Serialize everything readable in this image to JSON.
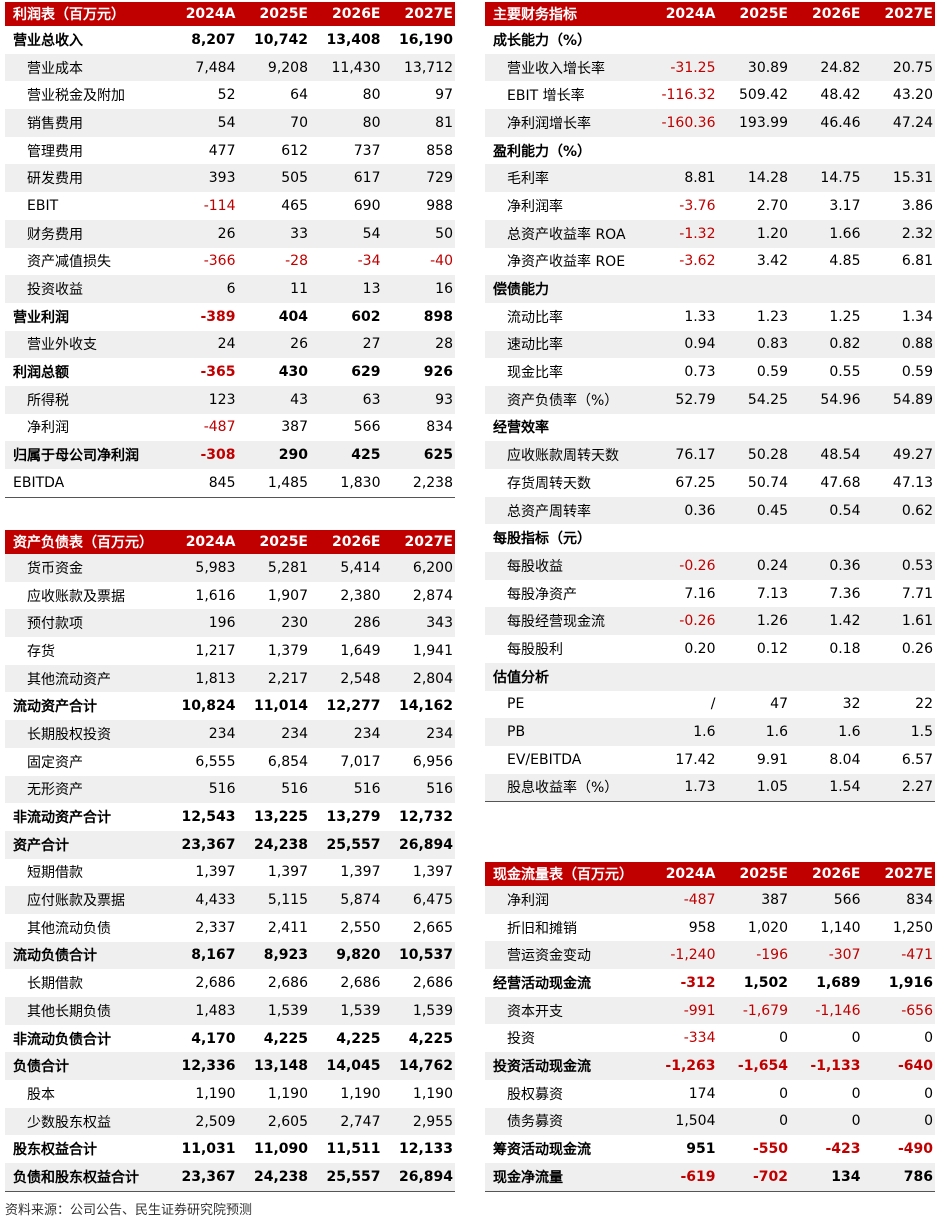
{
  "tables": [
    {
      "header": [
        "利润表（百万元）",
        "2024A",
        "2025E",
        "2026E",
        "2027E"
      ],
      "rows": [
        {
          "cells": [
            "营业总收入",
            "8,207",
            "10,742",
            "13,408",
            "16,190"
          ],
          "bold": true
        },
        {
          "cells": [
            "营业成本",
            "7,484",
            "9,208",
            "11,430",
            "13,712"
          ]
        },
        {
          "cells": [
            "营业税金及附加",
            "52",
            "64",
            "80",
            "97"
          ]
        },
        {
          "cells": [
            "销售费用",
            "54",
            "70",
            "80",
            "81"
          ]
        },
        {
          "cells": [
            "管理费用",
            "477",
            "612",
            "737",
            "858"
          ]
        },
        {
          "cells": [
            "研发费用",
            "393",
            "505",
            "617",
            "729"
          ]
        },
        {
          "cells": [
            "EBIT",
            "-114",
            "465",
            "690",
            "988"
          ]
        },
        {
          "cells": [
            "财务费用",
            "26",
            "33",
            "54",
            "50"
          ]
        },
        {
          "cells": [
            "资产减值损失",
            "-366",
            "-28",
            "-34",
            "-40"
          ]
        },
        {
          "cells": [
            "投资收益",
            "6",
            "11",
            "13",
            "16"
          ]
        },
        {
          "cells": [
            "营业利润",
            "-389",
            "404",
            "602",
            "898"
          ],
          "bold": true
        },
        {
          "cells": [
            "营业外收支",
            "24",
            "26",
            "27",
            "28"
          ]
        },
        {
          "cells": [
            "利润总额",
            "-365",
            "430",
            "629",
            "926"
          ],
          "bold": true
        },
        {
          "cells": [
            "所得税",
            "123",
            "43",
            "63",
            "93"
          ]
        },
        {
          "cells": [
            "净利润",
            "-487",
            "387",
            "566",
            "834"
          ]
        },
        {
          "cells": [
            "归属于母公司净利润",
            "-308",
            "290",
            "425",
            "625"
          ],
          "bold": true
        },
        {
          "cells": [
            "EBITDA",
            "845",
            "1,485",
            "1,830",
            "2,238"
          ]
        }
      ]
    },
    {
      "header": [
        "资产负债表（百万元）",
        "2024A",
        "2025E",
        "2026E",
        "2027E"
      ],
      "rows": [
        {
          "cells": [
            "货币资金",
            "5,983",
            "5,281",
            "5,414",
            "6,200"
          ]
        },
        {
          "cells": [
            "应收账款及票据",
            "1,616",
            "1,907",
            "2,380",
            "2,874"
          ]
        },
        {
          "cells": [
            "预付款项",
            "196",
            "230",
            "286",
            "343"
          ]
        },
        {
          "cells": [
            "存货",
            "1,217",
            "1,379",
            "1,649",
            "1,941"
          ]
        },
        {
          "cells": [
            "其他流动资产",
            "1,813",
            "2,217",
            "2,548",
            "2,804"
          ]
        },
        {
          "cells": [
            "流动资产合计",
            "10,824",
            "11,014",
            "12,277",
            "14,162"
          ],
          "bold": true
        },
        {
          "cells": [
            "长期股权投资",
            "234",
            "234",
            "234",
            "234"
          ]
        },
        {
          "cells": [
            "固定资产",
            "6,555",
            "6,854",
            "7,017",
            "6,956"
          ]
        },
        {
          "cells": [
            "无形资产",
            "516",
            "516",
            "516",
            "516"
          ]
        },
        {
          "cells": [
            "非流动资产合计",
            "12,543",
            "13,225",
            "13,279",
            "12,732"
          ],
          "bold": true
        },
        {
          "cells": [
            "资产合计",
            "23,367",
            "24,238",
            "25,557",
            "26,894"
          ],
          "bold": true
        },
        {
          "cells": [
            "短期借款",
            "1,397",
            "1,397",
            "1,397",
            "1,397"
          ]
        },
        {
          "cells": [
            "应付账款及票据",
            "4,433",
            "5,115",
            "5,874",
            "6,475"
          ]
        },
        {
          "cells": [
            "其他流动负债",
            "2,337",
            "2,411",
            "2,550",
            "2,665"
          ]
        },
        {
          "cells": [
            "流动负债合计",
            "8,167",
            "8,923",
            "9,820",
            "10,537"
          ],
          "bold": true
        },
        {
          "cells": [
            "长期借款",
            "2,686",
            "2,686",
            "2,686",
            "2,686"
          ]
        },
        {
          "cells": [
            "其他长期负债",
            "1,483",
            "1,539",
            "1,539",
            "1,539"
          ]
        },
        {
          "cells": [
            "非流动负债合计",
            "4,170",
            "4,225",
            "4,225",
            "4,225"
          ],
          "bold": true
        },
        {
          "cells": [
            "负债合计",
            "12,336",
            "13,148",
            "14,045",
            "14,762"
          ],
          "bold": true
        },
        {
          "cells": [
            "股本",
            "1,190",
            "1,190",
            "1,190",
            "1,190"
          ]
        },
        {
          "cells": [
            "少数股东权益",
            "2,509",
            "2,605",
            "2,747",
            "2,955"
          ]
        },
        {
          "cells": [
            "股东权益合计",
            "11,031",
            "11,090",
            "11,511",
            "12,133"
          ],
          "bold": true
        },
        {
          "cells": [
            "负债和股东权益合计",
            "23,367",
            "24,238",
            "25,557",
            "26,894"
          ],
          "bold": true
        }
      ]
    },
    {
      "header": [
        "主要财务指标",
        "2024A",
        "2025E",
        "2026E",
        "2027E"
      ],
      "rows": [
        {
          "cells": [
            "成长能力（%）"
          ],
          "bold": true
        },
        {
          "cells": [
            "营业收入增长率",
            "-31.25",
            "30.89",
            "24.82",
            "20.75"
          ]
        },
        {
          "cells": [
            "EBIT 增长率",
            "-116.32",
            "509.42",
            "48.42",
            "43.20"
          ]
        },
        {
          "cells": [
            "净利润增长率",
            "-160.36",
            "193.99",
            "46.46",
            "47.24"
          ]
        },
        {
          "cells": [
            "盈利能力（%）"
          ],
          "bold": true
        },
        {
          "cells": [
            "毛利率",
            "8.81",
            "14.28",
            "14.75",
            "15.31"
          ]
        },
        {
          "cells": [
            "净利润率",
            "-3.76",
            "2.70",
            "3.17",
            "3.86"
          ]
        },
        {
          "cells": [
            "总资产收益率 ROA",
            "-1.32",
            "1.20",
            "1.66",
            "2.32"
          ]
        },
        {
          "cells": [
            "净资产收益率 ROE",
            "-3.62",
            "3.42",
            "4.85",
            "6.81"
          ]
        },
        {
          "cells": [
            "偿债能力"
          ],
          "bold": true
        },
        {
          "cells": [
            "流动比率",
            "1.33",
            "1.23",
            "1.25",
            "1.34"
          ]
        },
        {
          "cells": [
            "速动比率",
            "0.94",
            "0.83",
            "0.82",
            "0.88"
          ]
        },
        {
          "cells": [
            "现金比率",
            "0.73",
            "0.59",
            "0.55",
            "0.59"
          ]
        },
        {
          "cells": [
            "资产负债率（%）",
            "52.79",
            "54.25",
            "54.96",
            "54.89"
          ]
        },
        {
          "cells": [
            "经营效率"
          ],
          "bold": true
        },
        {
          "cells": [
            "应收账款周转天数",
            "76.17",
            "50.28",
            "48.54",
            "49.27"
          ]
        },
        {
          "cells": [
            "存货周转天数",
            "67.25",
            "50.74",
            "47.68",
            "47.13"
          ]
        },
        {
          "cells": [
            "总资产周转率",
            "0.36",
            "0.45",
            "0.54",
            "0.62"
          ]
        },
        {
          "cells": [
            "每股指标（元）"
          ],
          "bold": true
        },
        {
          "cells": [
            "每股收益",
            "-0.26",
            "0.24",
            "0.36",
            "0.53"
          ]
        },
        {
          "cells": [
            "每股净资产",
            "7.16",
            "7.13",
            "7.36",
            "7.71"
          ]
        },
        {
          "cells": [
            "每股经营现金流",
            "-0.26",
            "1.26",
            "1.42",
            "1.61"
          ]
        },
        {
          "cells": [
            "每股股利",
            "0.20",
            "0.12",
            "0.18",
            "0.26"
          ]
        },
        {
          "cells": [
            "估值分析"
          ],
          "bold": true
        },
        {
          "cells": [
            "PE",
            "/",
            "47",
            "32",
            "22"
          ]
        },
        {
          "cells": [
            "PB",
            "1.6",
            "1.6",
            "1.6",
            "1.5"
          ]
        },
        {
          "cells": [
            "EV/EBITDA",
            "17.42",
            "9.91",
            "8.04",
            "6.57"
          ]
        },
        {
          "cells": [
            "股息收益率（%）",
            "1.73",
            "1.05",
            "1.54",
            "2.27"
          ]
        }
      ]
    },
    {
      "header": [
        "现金流量表（百万元）",
        "2024A",
        "2025E",
        "2026E",
        "2027E"
      ],
      "rows": [
        {
          "cells": [
            "净利润",
            "-487",
            "387",
            "566",
            "834"
          ]
        },
        {
          "cells": [
            "折旧和摊销",
            "958",
            "1,020",
            "1,140",
            "1,250"
          ]
        },
        {
          "cells": [
            "营运资金变动",
            "-1,240",
            "-196",
            "-307",
            "-471"
          ]
        },
        {
          "cells": [
            "经营活动现金流",
            "-312",
            "1,502",
            "1,689",
            "1,916"
          ],
          "bold": true
        },
        {
          "cells": [
            "资本开支",
            "-991",
            "-1,679",
            "-1,146",
            "-656"
          ]
        },
        {
          "cells": [
            "投资",
            "-334",
            "0",
            "0",
            "0"
          ]
        },
        {
          "cells": [
            "投资活动现金流",
            "-1,263",
            "-1,654",
            "-1,133",
            "-640"
          ],
          "bold": true
        },
        {
          "cells": [
            "股权募资",
            "174",
            "0",
            "0",
            "0"
          ]
        },
        {
          "cells": [
            "债务募资",
            "1,504",
            "0",
            "0",
            "0"
          ]
        },
        {
          "cells": [
            "筹资活动现金流",
            "951",
            "-550",
            "-423",
            "-490"
          ],
          "bold": true
        },
        {
          "cells": [
            "现金净流量",
            "-619",
            "-702",
            "134",
            "786"
          ],
          "bold": true
        }
      ]
    }
  ],
  "source": "资料来源：公司公告、民生证券研究院预测"
}
